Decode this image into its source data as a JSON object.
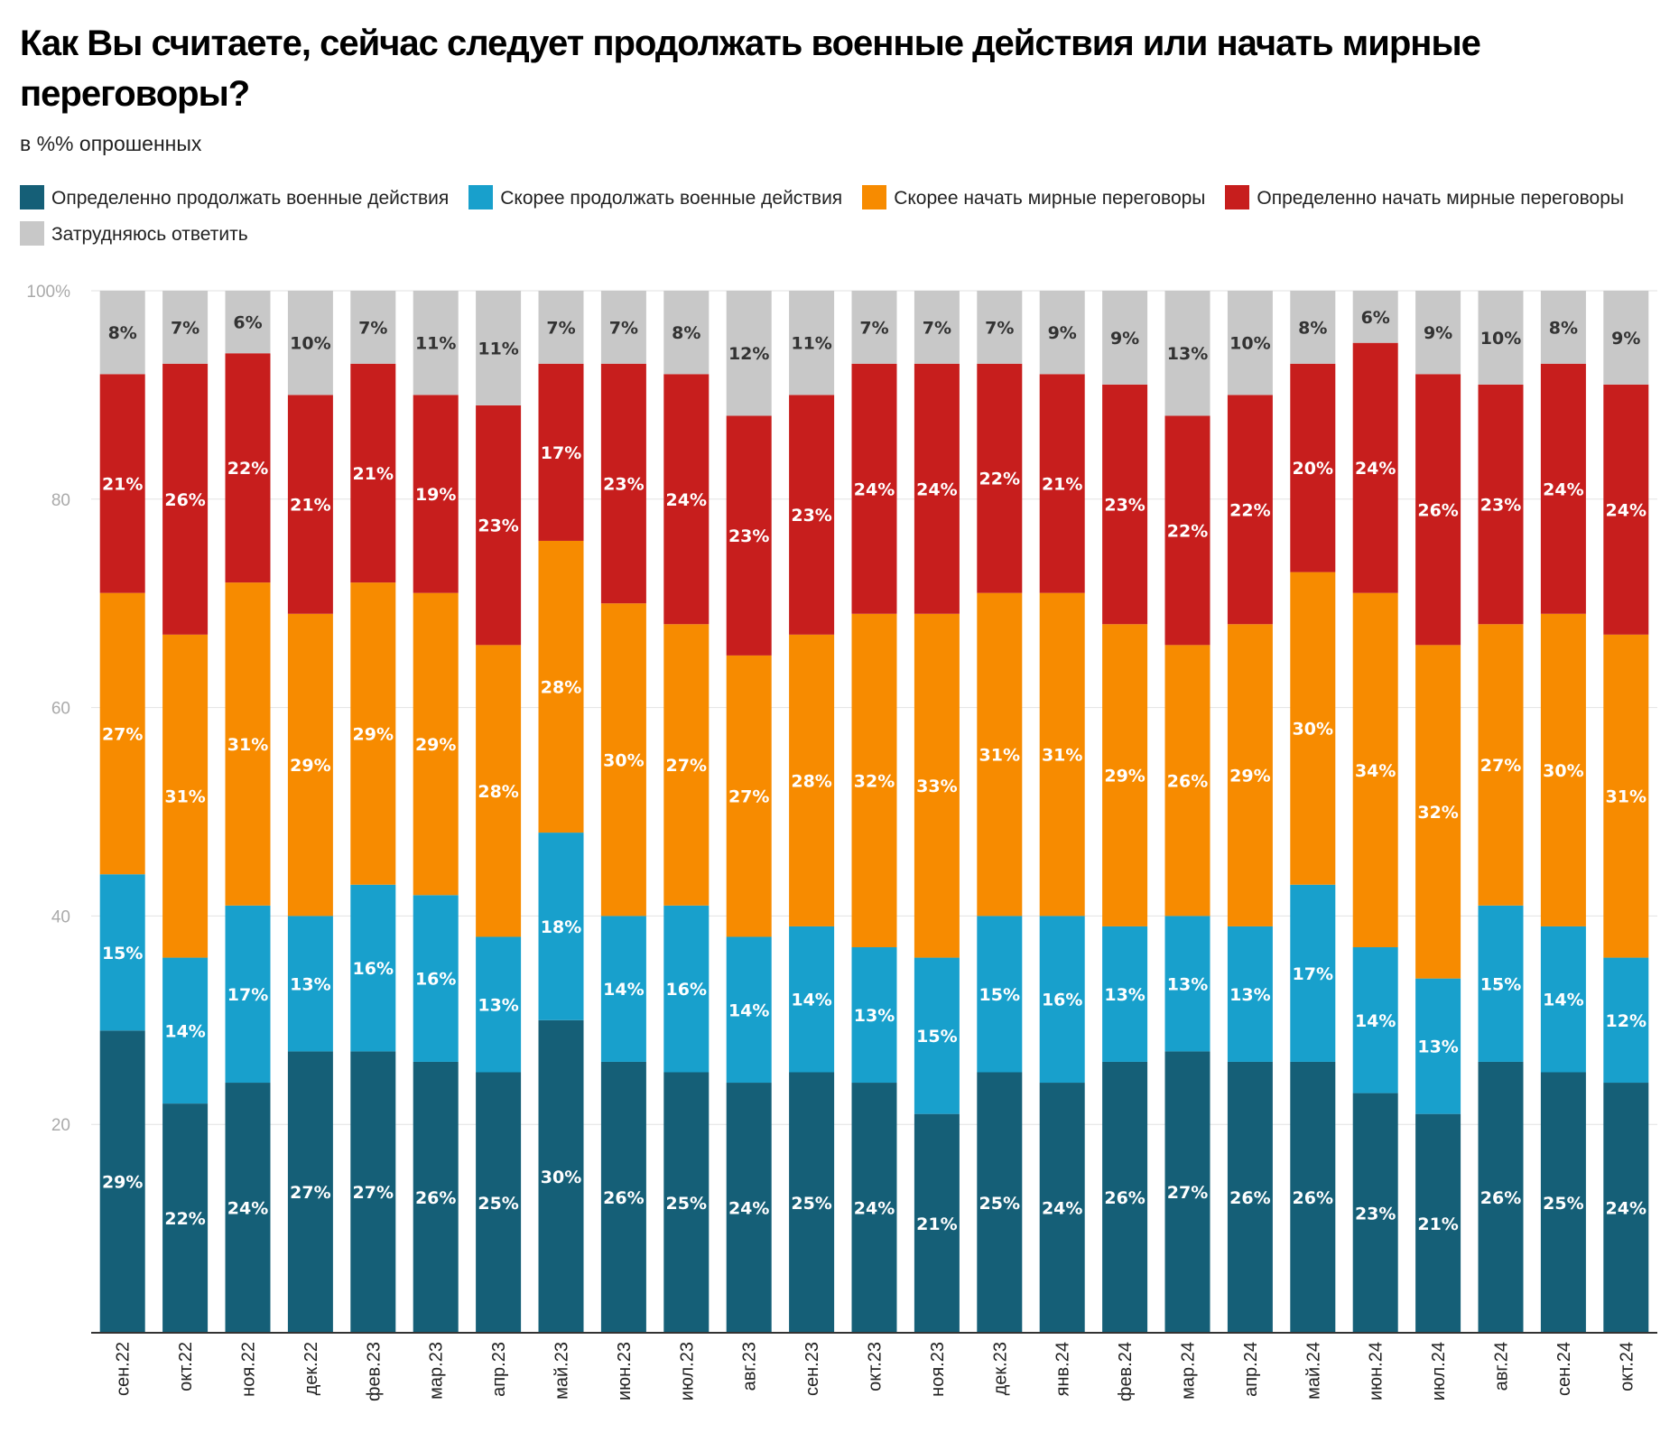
{
  "title": "Как Вы считаете, сейчас следует продолжать военные действия или начать мирные переговоры?",
  "subtitle": "в %% опрошенных",
  "chart_data": {
    "type": "bar",
    "stacked": true,
    "ylim": [
      0,
      100
    ],
    "yticks": [
      "",
      "20",
      "40",
      "60",
      "80",
      "100%"
    ],
    "grid": true,
    "legend_position": "top",
    "categories": [
      "сен.22",
      "окт.22",
      "ноя.22",
      "дек.22",
      "фев.23",
      "мар.23",
      "апр.23",
      "май.23",
      "июн.23",
      "июл.23",
      "авг.23",
      "сен.23",
      "окт.23",
      "ноя.23",
      "дек.23",
      "янв.24",
      "фев.24",
      "мар.24",
      "апр.24",
      "май.24",
      "июн.24",
      "июл.24",
      "авг.24",
      "сен.24",
      "окт.24"
    ],
    "series": [
      {
        "name": "Определенно продолжать военные действия",
        "color": "#155f77",
        "values": [
          29,
          22,
          24,
          27,
          27,
          26,
          25,
          30,
          26,
          25,
          24,
          25,
          24,
          21,
          25,
          24,
          26,
          27,
          26,
          26,
          23,
          21,
          26,
          25,
          24
        ]
      },
      {
        "name": "Скорее продолжать военные действия",
        "color": "#18a0cc",
        "values": [
          15,
          14,
          17,
          13,
          16,
          16,
          13,
          18,
          14,
          16,
          14,
          14,
          13,
          15,
          15,
          16,
          13,
          13,
          13,
          17,
          14,
          13,
          15,
          14,
          12
        ]
      },
      {
        "name": "Скорее начать мирные переговоры",
        "color": "#f78b00",
        "values": [
          27,
          31,
          31,
          29,
          29,
          29,
          28,
          28,
          30,
          27,
          27,
          28,
          32,
          33,
          31,
          31,
          29,
          26,
          29,
          30,
          34,
          32,
          27,
          30,
          31
        ]
      },
      {
        "name": "Определенно начать мирные переговоры",
        "color": "#c71e1d",
        "values": [
          21,
          26,
          22,
          21,
          21,
          19,
          23,
          17,
          23,
          24,
          23,
          23,
          24,
          24,
          22,
          21,
          23,
          22,
          22,
          20,
          24,
          26,
          23,
          24,
          24
        ]
      },
      {
        "name": "Затрудняюсь ответить",
        "color": "#c8c8c8",
        "values": [
          8,
          7,
          6,
          10,
          7,
          11,
          11,
          7,
          7,
          8,
          12,
          11,
          7,
          7,
          7,
          9,
          9,
          13,
          10,
          8,
          6,
          9,
          10,
          8,
          9
        ]
      }
    ]
  }
}
